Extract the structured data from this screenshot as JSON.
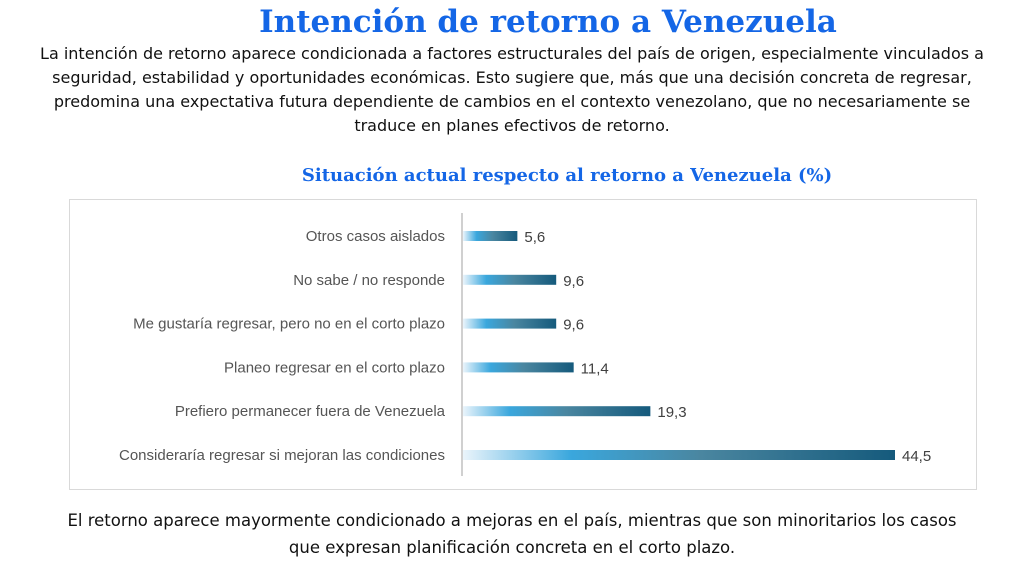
{
  "title": "Intención de retorno a Venezuela",
  "intro": "La intención de retorno aparece condicionada a factores estructurales del país de origen, especialmente vinculados a seguridad, estabilidad y oportunidades económicas. Esto sugiere que, más que una decisión concreta de regresar, predomina una expectativa futura dependiente de cambios en el contexto venezolano, que no necesariamente se traduce en planes efectivos de retorno.",
  "conclusion": "El retorno aparece mayormente condicionado a mejoras en el país, mientras que son minoritarios los casos que expresan planificación concreta en el corto plazo.",
  "chart_data": {
    "type": "bar",
    "orientation": "horizontal",
    "title": "Situación actual respecto al retorno a Venezuela (%)",
    "categories": [
      "Otros casos aislados",
      "No sabe / no responde",
      "Me gustaría regresar, pero no en el corto plazo",
      "Planeo regresar en el corto plazo",
      "Prefiero permanecer fuera de Venezuela",
      "Consideraría regresar si mejoran las condiciones"
    ],
    "values": [
      5.6,
      9.6,
      9.6,
      11.4,
      19.3,
      44.5
    ],
    "labels": [
      "5,6",
      "9,6",
      "9,6",
      "11,4",
      "19,3",
      "44,5"
    ],
    "xlim": [
      0,
      44.5
    ],
    "grid": false,
    "colors": {
      "start": "#eaf4fb",
      "mid": "#3aa7dd",
      "end": "#155a7c"
    }
  }
}
